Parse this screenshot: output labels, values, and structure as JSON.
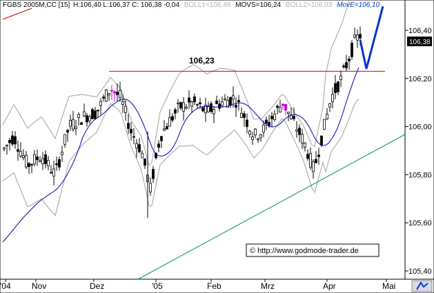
{
  "chart_data": {
    "type": "candlestick",
    "header": {
      "symbol": "FGBS 2005M,CC [15]",
      "ohlc": "H:106,40 L:106,37 C: 106,38 -0,04",
      "boll1": "BOLL1=106,46",
      "movs": "MOVS=106,24",
      "boll2": "BOLL2=106,03",
      "move": "MovE=106,10"
    },
    "last_price_label": "106,38",
    "resistance": {
      "value": 106.23,
      "label": "106,23"
    },
    "watermark": "© http://www.godmode-trader.de",
    "y_ticks": [
      {
        "value": 106.4,
        "label": "106,40"
      },
      {
        "value": 106.2,
        "label": "106,20"
      },
      {
        "value": 106.0,
        "label": "106,00"
      },
      {
        "value": 105.8,
        "label": "105,80"
      },
      {
        "value": 105.6,
        "label": "105,60"
      },
      {
        "value": 105.4,
        "label": "105,40"
      }
    ],
    "ylim": [
      105.37,
      106.55
    ],
    "x_ticks": [
      "'04",
      "Nov",
      "Dez",
      "'05",
      "Feb",
      "Mrz",
      "Apr",
      "Mai"
    ],
    "colors": {
      "candles": "#000000",
      "resistance": "#cc0000",
      "moving_average": "#0000aa",
      "bollinger": "#a0a0a0",
      "trendline": "#009060",
      "forecast": "#0033cc",
      "highlight": "#cc00cc"
    },
    "forecast_path": [
      [
        106.36,
        "top"
      ],
      [
        106.24,
        "low"
      ],
      [
        106.5,
        "target"
      ]
    ]
  }
}
